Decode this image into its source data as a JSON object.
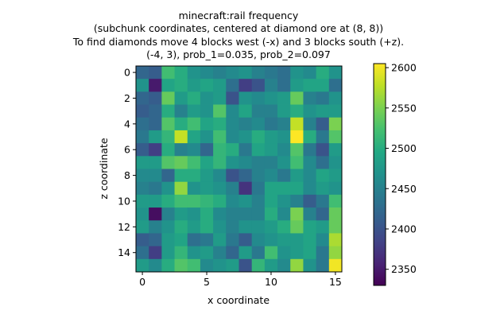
{
  "chart_data": {
    "type": "heatmap",
    "title_lines": [
      "minecraft:rail frequency",
      "(subchunk coordinates, centered at diamond ore at (8, 8))",
      "To find diamonds move 4 blocks west (-x) and 3 blocks south (+z).",
      "(-4, 3), prob_1=0.035, prob_2=0.097"
    ],
    "xlabel": "x coordinate",
    "ylabel": "z coordinate",
    "x_ticks": [
      0,
      5,
      10,
      15
    ],
    "y_ticks": [
      0,
      2,
      4,
      6,
      8,
      10,
      12,
      14
    ],
    "colorbar": {
      "min": 2330,
      "max": 2605,
      "ticks": [
        2350,
        2400,
        2450,
        2500,
        2550,
        2600
      ],
      "colormap": "viridis"
    },
    "grid_size": [
      16,
      16
    ],
    "values": [
      [
        2420,
        2410,
        2520,
        2500,
        2470,
        2460,
        2450,
        2460,
        2470,
        2450,
        2440,
        2430,
        2470,
        2460,
        2500,
        2470
      ],
      [
        2470,
        2350,
        2490,
        2500,
        2480,
        2490,
        2480,
        2430,
        2380,
        2400,
        2450,
        2430,
        2480,
        2490,
        2490,
        2430
      ],
      [
        2420,
        2410,
        2540,
        2480,
        2500,
        2470,
        2480,
        2400,
        2470,
        2460,
        2470,
        2480,
        2540,
        2450,
        2440,
        2470
      ],
      [
        2410,
        2420,
        2500,
        2450,
        2480,
        2470,
        2530,
        2460,
        2490,
        2450,
        2450,
        2480,
        2500,
        2470,
        2480,
        2480
      ],
      [
        2430,
        2420,
        2530,
        2500,
        2520,
        2490,
        2500,
        2460,
        2450,
        2460,
        2440,
        2450,
        2580,
        2450,
        2410,
        2550
      ],
      [
        2440,
        2480,
        2510,
        2580,
        2490,
        2470,
        2520,
        2460,
        2470,
        2500,
        2480,
        2470,
        2605,
        2500,
        2440,
        2530
      ],
      [
        2410,
        2380,
        2500,
        2450,
        2460,
        2420,
        2510,
        2500,
        2440,
        2490,
        2480,
        2460,
        2530,
        2440,
        2400,
        2480
      ],
      [
        2480,
        2480,
        2530,
        2540,
        2520,
        2490,
        2510,
        2470,
        2460,
        2450,
        2450,
        2470,
        2520,
        2460,
        2430,
        2470
      ],
      [
        2460,
        2460,
        2420,
        2500,
        2500,
        2480,
        2460,
        2400,
        2420,
        2450,
        2460,
        2440,
        2480,
        2460,
        2490,
        2480
      ],
      [
        2450,
        2440,
        2470,
        2560,
        2470,
        2480,
        2470,
        2450,
        2370,
        2440,
        2490,
        2490,
        2490,
        2460,
        2480,
        2470
      ],
      [
        2480,
        2480,
        2500,
        2520,
        2520,
        2510,
        2500,
        2460,
        2470,
        2450,
        2490,
        2470,
        2450,
        2410,
        2440,
        2520
      ],
      [
        2470,
        2340,
        2450,
        2480,
        2470,
        2500,
        2460,
        2450,
        2450,
        2450,
        2500,
        2460,
        2550,
        2450,
        2420,
        2540
      ],
      [
        2480,
        2450,
        2470,
        2500,
        2480,
        2500,
        2470,
        2450,
        2470,
        2470,
        2480,
        2500,
        2540,
        2490,
        2480,
        2540
      ],
      [
        2410,
        2420,
        2480,
        2490,
        2430,
        2440,
        2480,
        2440,
        2410,
        2460,
        2470,
        2480,
        2480,
        2490,
        2460,
        2570
      ],
      [
        2430,
        2380,
        2480,
        2510,
        2470,
        2480,
        2450,
        2420,
        2480,
        2440,
        2520,
        2470,
        2480,
        2490,
        2440,
        2560
      ],
      [
        2480,
        2460,
        2500,
        2530,
        2520,
        2460,
        2470,
        2480,
        2400,
        2510,
        2480,
        2460,
        2560,
        2470,
        2440,
        2600
      ]
    ]
  }
}
